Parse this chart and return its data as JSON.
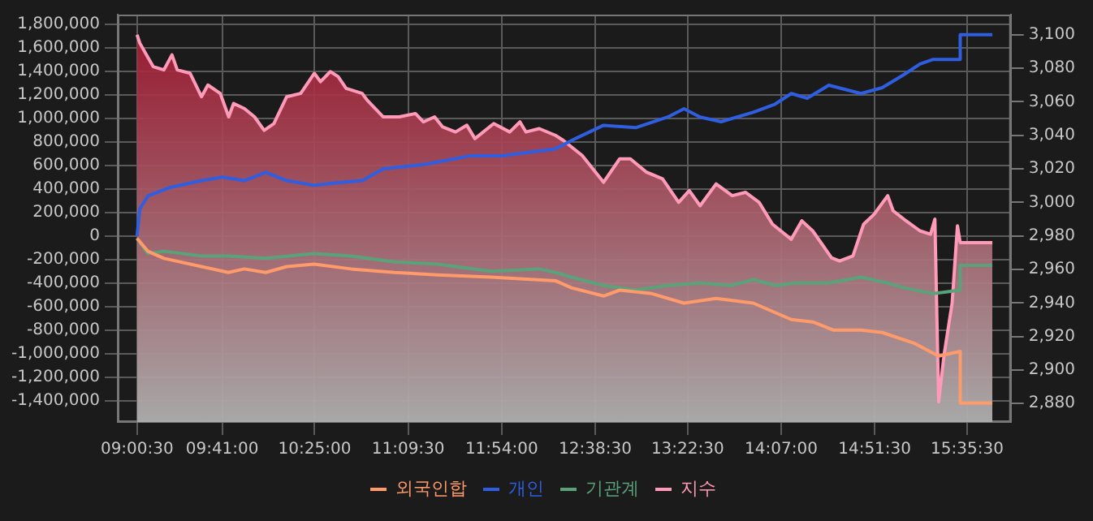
{
  "chart_data": {
    "type": "line",
    "legend": "bottom",
    "grid": true,
    "line_style": "solid",
    "marker": "none",
    "xlim": [
      8.855,
      15.938
    ],
    "xticks": [
      {
        "value": 9.008333,
        "label": "09:00:30"
      },
      {
        "value": 9.683333,
        "label": "09:41:00"
      },
      {
        "value": 10.416667,
        "label": "10:25:00"
      },
      {
        "value": 11.158333,
        "label": "11:09:30"
      },
      {
        "value": 11.9,
        "label": "11:54:00"
      },
      {
        "value": 12.641667,
        "label": "12:38:30"
      },
      {
        "value": 13.375,
        "label": "13:22:30"
      },
      {
        "value": 14.116667,
        "label": "14:07:00"
      },
      {
        "value": 14.858333,
        "label": "14:51:30"
      },
      {
        "value": 15.591667,
        "label": "15:35:30"
      }
    ],
    "ylim": [
      -1580000,
      1880000
    ],
    "yticks": [
      {
        "value": -1400000,
        "label": "-1,400,000"
      },
      {
        "value": -1200000,
        "label": "-1,200,000"
      },
      {
        "value": -1000000,
        "label": "-1,000,000"
      },
      {
        "value": -800000,
        "label": "-800,000"
      },
      {
        "value": -600000,
        "label": "-600,000"
      },
      {
        "value": -400000,
        "label": "-400,000"
      },
      {
        "value": -200000,
        "label": "-200,000"
      },
      0,
      {
        "value": 200000,
        "label": "200,000"
      },
      {
        "value": 400000,
        "label": "400,000"
      },
      {
        "value": 600000,
        "label": "600,000"
      },
      {
        "value": 800000,
        "label": "800,000"
      },
      {
        "value": 1000000,
        "label": "1,000,000"
      },
      {
        "value": 1200000,
        "label": "1,200,000"
      },
      {
        "value": 1400000,
        "label": "1,400,000"
      },
      {
        "value": 1600000,
        "label": "1,600,000"
      },
      {
        "value": 1800000,
        "label": "1,800,000"
      }
    ],
    "y2lim": [
      2869,
      3112
    ],
    "y2ticks": [
      {
        "value": 2880,
        "label": "2,880"
      },
      {
        "value": 2900,
        "label": "2,900"
      },
      {
        "value": 2920,
        "label": "2,920"
      },
      {
        "value": 2940,
        "label": "2,940"
      },
      {
        "value": 2960,
        "label": "2,960"
      },
      {
        "value": 2980,
        "label": "2,980"
      },
      {
        "value": 3000,
        "label": "3,000"
      },
      {
        "value": 3020,
        "label": "3,020"
      },
      {
        "value": 3040,
        "label": "3,040"
      },
      {
        "value": 3060,
        "label": "3,060"
      },
      {
        "value": 3080,
        "label": "3,080"
      },
      {
        "value": 3100,
        "label": "3,100"
      }
    ],
    "series": [
      {
        "name": "외국인합",
        "type": "line",
        "color": "#ff9a6a",
        "x": [
          9.008,
          9.094,
          9.221,
          9.519,
          9.732,
          9.859,
          10.029,
          10.195,
          10.412,
          10.705,
          11.05,
          11.39,
          11.815,
          12.326,
          12.453,
          12.708,
          12.836,
          13.091,
          13.346,
          13.601,
          13.895,
          14.197,
          14.367,
          14.533,
          14.75,
          14.919,
          15.17,
          15.366,
          15.537,
          15.537,
          15.792
        ],
        "values": [
          -20000,
          -130000,
          -190000,
          -260000,
          -310000,
          -280000,
          -310000,
          -260000,
          -240000,
          -280000,
          -310000,
          -330000,
          -350000,
          -380000,
          -440000,
          -510000,
          -460000,
          -490000,
          -570000,
          -530000,
          -570000,
          -710000,
          -730000,
          -800000,
          -800000,
          -820000,
          -910000,
          -1020000,
          -980000,
          -1420000,
          -1420000
        ]
      },
      {
        "name": "개인",
        "type": "line",
        "color": "#2f5ee0",
        "x": [
          9.008,
          9.03,
          9.094,
          9.263,
          9.519,
          9.684,
          9.859,
          10.029,
          10.195,
          10.412,
          10.578,
          10.795,
          10.96,
          11.305,
          11.645,
          11.901,
          12.326,
          12.491,
          12.708,
          12.963,
          13.218,
          13.346,
          13.474,
          13.64,
          13.895,
          14.069,
          14.197,
          14.324,
          14.494,
          14.75,
          14.919,
          15.09,
          15.218,
          15.323,
          15.537,
          15.537,
          15.792
        ],
        "values": [
          0,
          230000,
          340000,
          410000,
          470000,
          500000,
          470000,
          540000,
          470000,
          430000,
          450000,
          470000,
          570000,
          610000,
          680000,
          680000,
          740000,
          830000,
          940000,
          920000,
          1010000,
          1080000,
          1010000,
          970000,
          1050000,
          1120000,
          1210000,
          1170000,
          1280000,
          1210000,
          1260000,
          1370000,
          1460000,
          1500000,
          1500000,
          1710000,
          1710000
        ]
      },
      {
        "name": "기관계",
        "type": "line",
        "color": "#5aa37a",
        "x": [
          9.008,
          9.094,
          9.221,
          9.519,
          9.732,
          10.029,
          10.412,
          10.705,
          11.05,
          11.39,
          11.815,
          12.198,
          12.326,
          12.453,
          12.708,
          12.963,
          13.218,
          13.474,
          13.729,
          13.895,
          14.069,
          14.239,
          14.494,
          14.75,
          14.962,
          15.09,
          15.323,
          15.537,
          15.537,
          15.792
        ],
        "values": [
          -20000,
          -150000,
          -130000,
          -170000,
          -170000,
          -190000,
          -150000,
          -170000,
          -220000,
          -240000,
          -300000,
          -280000,
          -310000,
          -350000,
          -420000,
          -460000,
          -420000,
          -400000,
          -420000,
          -370000,
          -420000,
          -400000,
          -400000,
          -350000,
          -400000,
          -440000,
          -490000,
          -460000,
          -250000,
          -250000
        ]
      },
      {
        "name": "지수",
        "type": "area",
        "axis": "y2",
        "color": "#ff9ab8",
        "x": [
          9.008,
          9.03,
          9.098,
          9.136,
          9.221,
          9.285,
          9.327,
          9.429,
          9.519,
          9.57,
          9.668,
          9.735,
          9.774,
          9.859,
          9.94,
          10.016,
          10.093,
          10.195,
          10.306,
          10.414,
          10.463,
          10.541,
          10.603,
          10.666,
          10.794,
          10.833,
          10.961,
          11.088,
          11.216,
          11.279,
          11.368,
          11.432,
          11.534,
          11.624,
          11.688,
          11.837,
          11.964,
          12.045,
          12.092,
          12.198,
          12.326,
          12.389,
          12.538,
          12.708,
          12.836,
          12.921,
          13.049,
          13.176,
          13.304,
          13.388,
          13.474,
          13.601,
          13.729,
          13.835,
          13.942,
          14.048,
          14.197,
          14.281,
          14.367,
          14.516,
          14.58,
          14.686,
          14.771,
          14.855,
          14.962,
          15.005,
          15.09,
          15.218,
          15.302,
          15.336,
          15.366,
          15.409,
          15.473,
          15.515,
          15.537,
          15.792
        ],
        "values": [
          3100,
          3095,
          3086,
          3081,
          3079,
          3088,
          3079,
          3077,
          3063,
          3070,
          3065,
          3051,
          3059,
          3056,
          3051,
          3043,
          3047,
          3063,
          3065,
          3077,
          3072,
          3078,
          3075,
          3068,
          3065,
          3061,
          3051,
          3051,
          3053,
          3048,
          3051,
          3045,
          3042,
          3046,
          3038,
          3047,
          3042,
          3048,
          3042,
          3044,
          3040,
          3037,
          3028,
          3012,
          3026,
          3026,
          3018,
          3014,
          3000,
          3007,
          2998,
          3011,
          3004,
          3006,
          3000,
          2987,
          2978,
          2989,
          2983,
          2967,
          2965,
          2968,
          2987,
          2993,
          3004,
          2995,
          2990,
          2983,
          2981,
          2990,
          2881,
          2909,
          2940,
          2986,
          2976,
          2976
        ]
      }
    ]
  }
}
